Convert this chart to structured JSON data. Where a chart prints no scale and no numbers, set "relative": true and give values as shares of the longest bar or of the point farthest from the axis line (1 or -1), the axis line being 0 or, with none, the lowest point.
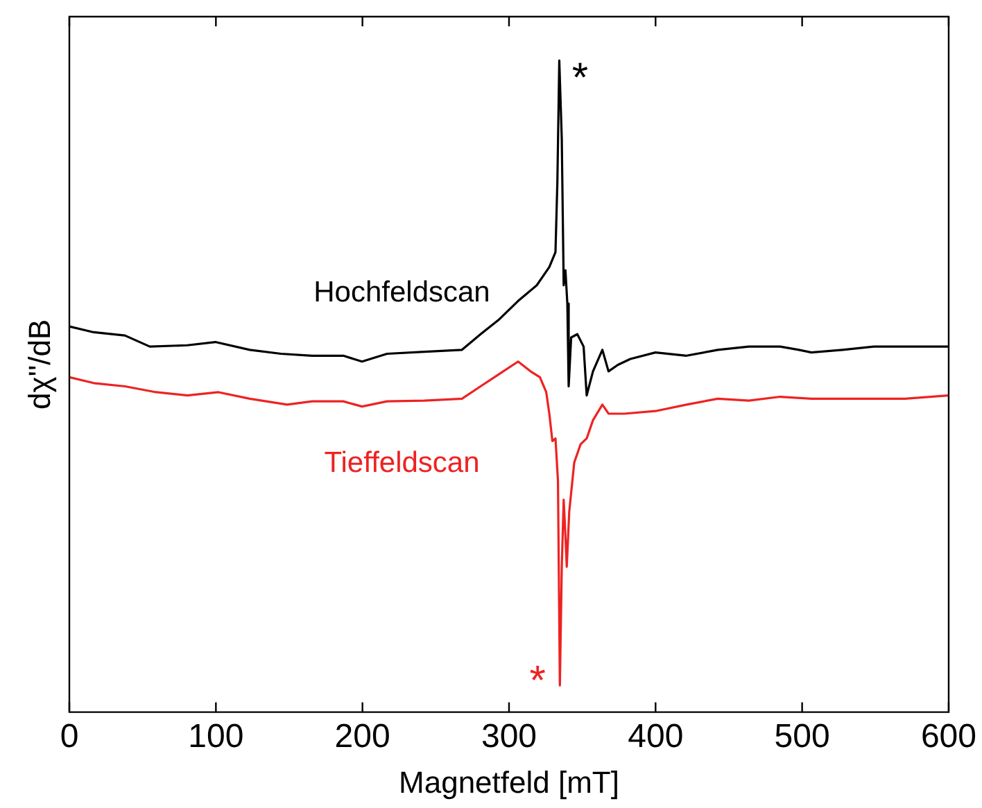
{
  "chart_data": {
    "type": "line",
    "xlabel": "Magnetfeld [mT]",
    "ylabel": "dχ''/dB",
    "relative": true,
    "xlim": [
      0,
      600
    ],
    "xticks": [
      0,
      100,
      200,
      300,
      400,
      500,
      600
    ],
    "grid": false,
    "legend": false,
    "marker": "none",
    "line_style": "solid",
    "annotations": [
      "*",
      "*"
    ],
    "series": [
      {
        "name": "Hochfeldscan",
        "color": "#000000",
        "x": [
          0,
          16.6,
          37.9,
          54.9,
          80.5,
          99.6,
          123.1,
          144.4,
          165.7,
          186.9,
          199.7,
          216.8,
          242.3,
          267.9,
          280.6,
          293.4,
          306.2,
          318.9,
          327.5,
          331.7,
          333.0,
          334.3,
          336.0,
          337.3,
          338.5,
          339.8,
          340.7,
          342.4,
          346.6,
          350.9,
          353.0,
          357.3,
          363.7,
          367.9,
          374.3,
          382.8,
          399.9,
          421.2,
          442.5,
          463.7,
          485.0,
          497.8,
          506.3,
          527.6,
          548.9,
          570.2,
          600
        ],
        "values": [
          0.592,
          0.583,
          0.578,
          0.561,
          0.563,
          0.568,
          0.556,
          0.55,
          0.547,
          0.547,
          0.538,
          0.55,
          0.553,
          0.556,
          0.58,
          0.603,
          0.631,
          0.655,
          0.683,
          0.706,
          0.814,
          1,
          0.88,
          0.655,
          0.678,
          0.627,
          0.5,
          0.575,
          0.58,
          0.561,
          0.486,
          0.523,
          0.556,
          0.523,
          0.533,
          0.542,
          0.552,
          0.547,
          0.556,
          0.561,
          0.561,
          0.556,
          0.552,
          0.556,
          0.561,
          0.561,
          0.561
        ]
      },
      {
        "name": "Tieffeldscan",
        "color": "#ee2222",
        "x": [
          0,
          16.6,
          37.9,
          59.2,
          80.5,
          101.8,
          123.1,
          148.6,
          165.7,
          186.9,
          199.7,
          216.8,
          242.3,
          267.9,
          280.6,
          293.4,
          306.2,
          314.7,
          321.1,
          325.4,
          327.5,
          329.6,
          331.7,
          333.4,
          334.7,
          336.0,
          337.3,
          338.5,
          339.4,
          341.1,
          344.5,
          348.8,
          353.0,
          357.3,
          363.7,
          367.9,
          378.6,
          399.9,
          421.2,
          442.5,
          463.7,
          485.0,
          506.3,
          548.9,
          570.2,
          600
        ],
        "values": [
          0.514,
          0.505,
          0.5,
          0.491,
          0.486,
          0.491,
          0.481,
          0.472,
          0.477,
          0.477,
          0.469,
          0.477,
          0.478,
          0.481,
          0.5,
          0.519,
          0.538,
          0.523,
          0.514,
          0.491,
          0.458,
          0.416,
          0.42,
          0.355,
          0.041,
          0.223,
          0.326,
          0.27,
          0.223,
          0.308,
          0.383,
          0.411,
          0.42,
          0.448,
          0.472,
          0.458,
          0.458,
          0.462,
          0.472,
          0.481,
          0.478,
          0.484,
          0.481,
          0.481,
          0.481,
          0.486
        ]
      }
    ]
  }
}
